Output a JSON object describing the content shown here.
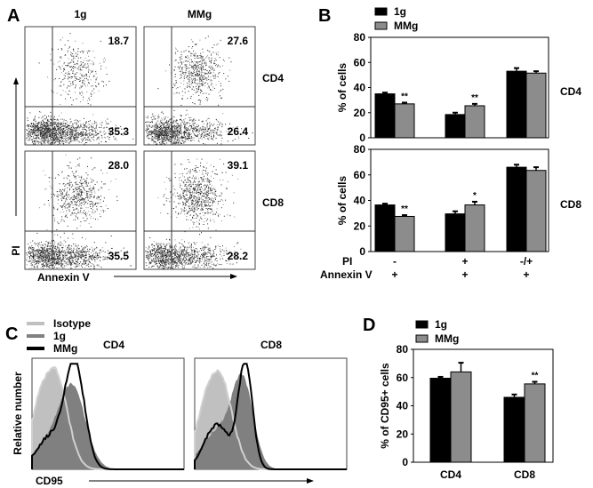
{
  "panels": {
    "A": "A",
    "B": "B",
    "C": "C",
    "D": "D"
  },
  "colors": {
    "g1": "#000000",
    "mmg": "#8c8c8c",
    "isotype": "#c0c0c0",
    "hist_1g": "#808080"
  },
  "panel_a": {
    "type": "scatter",
    "columns": [
      "1g",
      "MMg"
    ],
    "rows": [
      "CD4",
      "CD8"
    ],
    "xlabel": "Annexin V",
    "ylabel": "PI",
    "quadrant_values": {
      "CD4": {
        "1g": {
          "upper_right": "18.7",
          "lower_right": "35.3"
        },
        "MMg": {
          "upper_right": "27.6",
          "lower_right": "26.4"
        }
      },
      "CD8": {
        "1g": {
          "upper_right": "28.0",
          "lower_right": "35.5"
        },
        "MMg": {
          "upper_right": "39.1",
          "lower_right": "28.2"
        }
      }
    }
  },
  "chart_data": [
    {
      "id": "B-CD4",
      "type": "bar",
      "ylabel": "% of cells",
      "row_label": "CD4",
      "ylim": [
        0,
        80
      ],
      "yticks": [
        "0",
        "20",
        "40",
        "60",
        "80"
      ],
      "categories": [
        "PI - / Annexin V +",
        "PI + / Annexin V +",
        "PI -/+ / Annexin V +"
      ],
      "series": [
        {
          "name": "1g",
          "values": [
            35,
            18.5,
            53
          ],
          "errors": [
            1,
            1.5,
            2.5
          ]
        },
        {
          "name": "MMg",
          "values": [
            27,
            25.5,
            51.5
          ],
          "errors": [
            1,
            1.5,
            1.5
          ]
        }
      ],
      "significance": [
        "**",
        "**",
        ""
      ]
    },
    {
      "id": "B-CD8",
      "type": "bar",
      "ylabel": "% of cells",
      "row_label": "CD8",
      "ylim": [
        0,
        80
      ],
      "yticks": [
        "0",
        "20",
        "40",
        "60",
        "80"
      ],
      "categories": [
        "PI - / Annexin V +",
        "PI + / Annexin V +",
        "PI -/+ / Annexin V +"
      ],
      "series": [
        {
          "name": "1g",
          "values": [
            36.5,
            29.5,
            66
          ],
          "errors": [
            1,
            2,
            2
          ]
        },
        {
          "name": "MMg",
          "values": [
            27.5,
            36.5,
            63.5
          ],
          "errors": [
            1,
            2.5,
            2.5
          ]
        }
      ],
      "significance": [
        "**",
        "*",
        ""
      ]
    },
    {
      "id": "D",
      "type": "bar",
      "ylabel": "% of CD95+ cells",
      "ylim": [
        0,
        80
      ],
      "yticks": [
        "0",
        "20",
        "40",
        "60",
        "80"
      ],
      "categories": [
        "CD4",
        "CD8"
      ],
      "series": [
        {
          "name": "1g",
          "values": [
            59.5,
            46
          ],
          "errors": [
            1,
            2
          ]
        },
        {
          "name": "MMg",
          "values": [
            64,
            55.5
          ],
          "errors": [
            6.5,
            1.5
          ]
        }
      ],
      "significance": [
        "",
        "**"
      ]
    }
  ],
  "panel_b": {
    "legend": [
      "1g",
      "MMg"
    ],
    "row_headers": [
      "PI",
      "Annexin V"
    ],
    "pi_values": [
      "-",
      "+",
      "-/+"
    ],
    "annexin_values": [
      "+",
      "+",
      "+"
    ]
  },
  "panel_c": {
    "type": "histogram",
    "legend": [
      "Isotype",
      "1g",
      "MMg"
    ],
    "titles": [
      "CD4",
      "CD8"
    ],
    "xlabel": "CD95",
    "ylabel": "Relative number"
  },
  "panel_d": {
    "legend": [
      "1g",
      "MMg"
    ]
  }
}
